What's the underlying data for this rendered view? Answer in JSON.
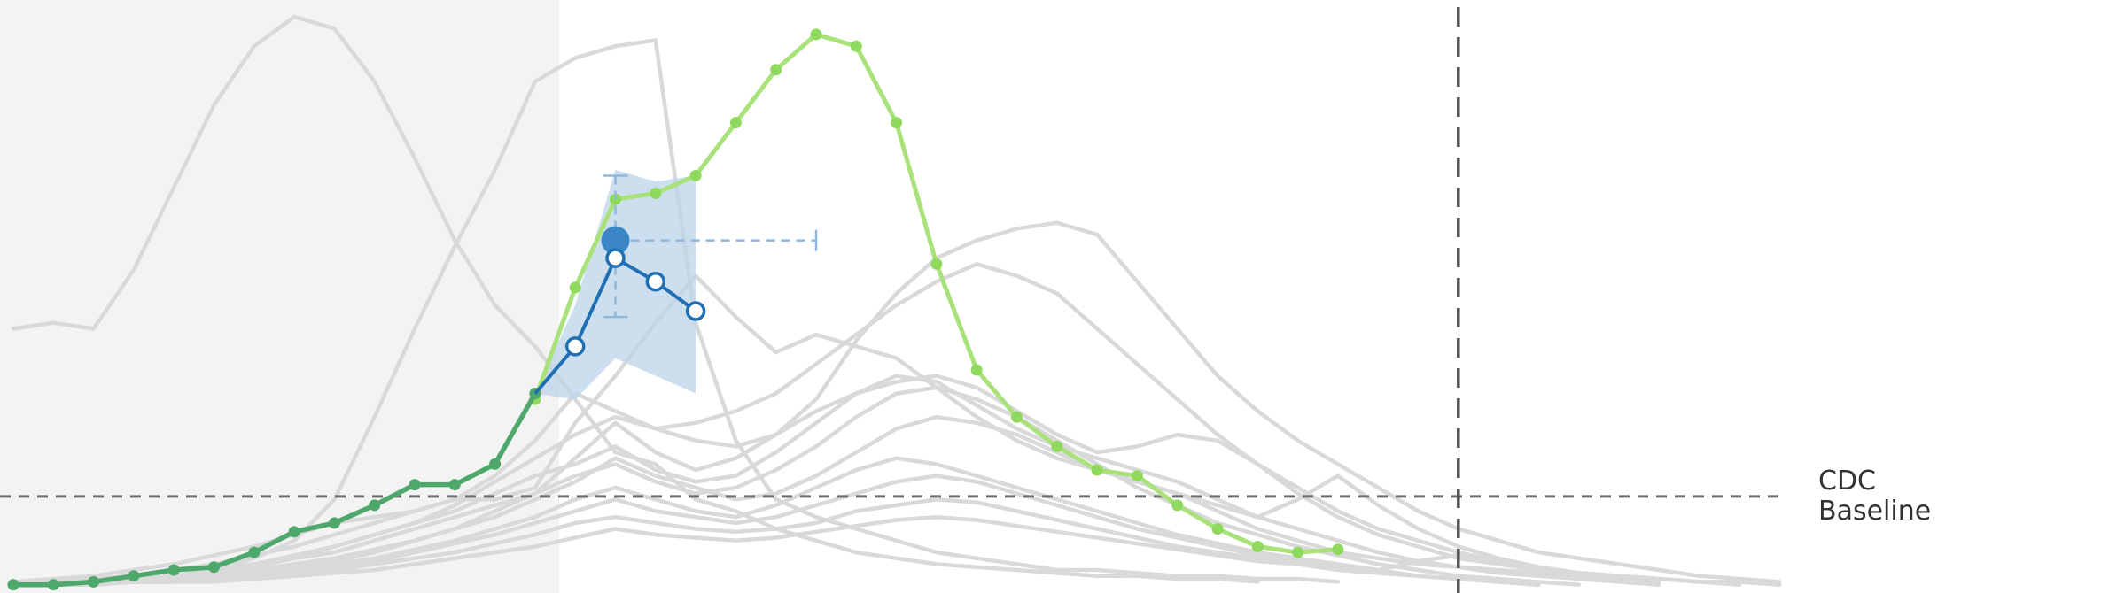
{
  "chart_data": {
    "type": "line",
    "title": "",
    "xlabel": "",
    "ylabel": "",
    "x_range": [
      0,
      50
    ],
    "y_range": [
      0,
      9.7
    ],
    "grid": false,
    "shaded_region_x": [
      0,
      13.6
    ],
    "current_week_marker_x": 36,
    "cdc_baseline": {
      "value": 1.55,
      "label_line1": "CDC",
      "label_line2": "Baseline"
    },
    "colors": {
      "history": "#d9d9d9",
      "shaded_region": "#f3f3f3",
      "actual": "#a9e27a",
      "actual_points": "#8fd95e",
      "observed": "#4ea86b",
      "forecast": "#1f6fb2",
      "forecast_band": "#bcd4ea",
      "marker_line": "#555555",
      "baseline_line": "#6e6e6e"
    },
    "history_series": [
      {
        "values": [
          4.4,
          4.5,
          4.4,
          5.4,
          6.8,
          8.2,
          9.2,
          9.7,
          9.5,
          8.6,
          7.3,
          5.9,
          4.8,
          4.1,
          3.2,
          2.3,
          2.1,
          1.5,
          1.3,
          1.0,
          0.8,
          0.6,
          0.5,
          0.4,
          0.35,
          0.3,
          0.25,
          0.2,
          0.2,
          0.15,
          0.15,
          0.1
        ]
      },
      {
        "values": [
          0.05,
          0.1,
          0.1,
          0.15,
          0.2,
          0.3,
          0.5,
          0.8,
          1.5,
          2.9,
          4.4,
          5.8,
          7.1,
          8.6,
          9.0,
          9.2,
          9.3,
          4.5,
          2.5,
          1.5,
          1.2,
          1.0,
          0.8,
          0.6,
          0.5,
          0.4,
          0.3,
          0.3,
          0.25,
          0.2,
          0.2,
          0.15,
          0.15,
          0.1
        ]
      },
      {
        "values": [
          0.1,
          0.15,
          0.2,
          0.3,
          0.4,
          0.55,
          0.7,
          0.9,
          1.1,
          1.2,
          1.3,
          1.5,
          1.5,
          1.7,
          2.8,
          3.6,
          4.5,
          5.3,
          4.6,
          4.0,
          4.3,
          4.1,
          3.9,
          3.4,
          2.9,
          2.5,
          2.2,
          2.0,
          1.8,
          1.6,
          1.3,
          1.0,
          0.8,
          0.6,
          0.5,
          0.4,
          0.35,
          0.3,
          0.25,
          0.2,
          0.2,
          0.15,
          0.1,
          0.1,
          0.05
        ]
      },
      {
        "values": [
          0.05,
          0.1,
          0.1,
          0.15,
          0.2,
          0.3,
          0.4,
          0.5,
          0.7,
          0.9,
          1.1,
          1.4,
          1.8,
          2.2,
          2.6,
          2.9,
          2.7,
          2.5,
          2.4,
          2.6,
          3.2,
          4.2,
          5.0,
          5.6,
          5.9,
          6.1,
          6.2,
          6.0,
          5.2,
          4.4,
          3.6,
          3.0,
          2.5,
          2.1,
          1.7,
          1.3,
          1.0,
          0.8,
          0.6,
          0.5,
          0.4,
          0.3,
          0.2,
          0.15,
          0.1
        ]
      },
      {
        "values": [
          0.05,
          0.1,
          0.15,
          0.2,
          0.3,
          0.4,
          0.55,
          0.7,
          0.9,
          1.1,
          1.3,
          1.5,
          1.9,
          2.5,
          3.3,
          3.0,
          2.7,
          2.8,
          3.0,
          3.3,
          3.8,
          4.3,
          4.8,
          5.2,
          5.5,
          5.3,
          5.0,
          4.4,
          3.8,
          3.2,
          2.6,
          2.1,
          1.7,
          1.3,
          1.0,
          0.8,
          0.6,
          0.45,
          0.35,
          0.25,
          0.2,
          0.15,
          0.1
        ]
      },
      {
        "values": [
          0.05,
          0.1,
          0.1,
          0.15,
          0.2,
          0.25,
          0.35,
          0.5,
          0.6,
          0.8,
          1.0,
          1.2,
          1.4,
          1.6,
          2.2,
          2.8,
          2.3,
          2.0,
          2.2,
          2.6,
          3.0,
          3.3,
          3.5,
          3.6,
          3.4,
          3.0,
          2.6,
          2.3,
          2.4,
          2.6,
          2.5,
          2.1,
          1.6,
          1.2,
          0.9,
          0.7,
          0.5,
          0.4,
          0.3,
          0.2,
          0.15,
          0.1
        ]
      },
      {
        "values": [
          0.05,
          0.1,
          0.1,
          0.15,
          0.2,
          0.3,
          0.4,
          0.55,
          0.7,
          0.9,
          1.1,
          1.3,
          1.6,
          1.9,
          2.1,
          2.4,
          2.0,
          1.8,
          1.9,
          2.3,
          2.8,
          3.3,
          3.6,
          3.5,
          3.1,
          2.7,
          2.4,
          2.2,
          2.0,
          1.8,
          1.5,
          1.2,
          1.5,
          1.9,
          1.4,
          1.0,
          0.7,
          0.5,
          0.35,
          0.25,
          0.2,
          0.1
        ]
      },
      {
        "values": [
          0.05,
          0.05,
          0.1,
          0.1,
          0.15,
          0.2,
          0.25,
          0.35,
          0.45,
          0.6,
          0.8,
          1.0,
          1.3,
          1.6,
          1.9,
          2.1,
          1.8,
          1.6,
          1.7,
          2.0,
          2.4,
          2.9,
          3.3,
          3.4,
          3.2,
          2.9,
          2.5,
          2.1,
          1.7,
          1.4,
          1.1,
          0.9,
          0.7,
          0.55,
          0.4,
          0.3,
          0.2,
          0.15,
          0.1,
          0.05
        ]
      },
      {
        "values": [
          0.05,
          0.05,
          0.1,
          0.1,
          0.15,
          0.2,
          0.3,
          0.4,
          0.5,
          0.65,
          0.8,
          1.0,
          1.2,
          1.5,
          1.8,
          2.2,
          1.9,
          1.7,
          1.5,
          1.6,
          1.9,
          2.3,
          2.7,
          2.9,
          2.8,
          2.6,
          2.3,
          2.0,
          1.8,
          1.6,
          1.4,
          1.2,
          1.0,
          0.8,
          0.6,
          0.45,
          0.35,
          0.25,
          0.2,
          0.15,
          0.1,
          0.05
        ]
      },
      {
        "values": [
          0.05,
          0.05,
          0.1,
          0.1,
          0.15,
          0.2,
          0.25,
          0.3,
          0.4,
          0.5,
          0.65,
          0.8,
          1.0,
          1.2,
          1.5,
          1.7,
          1.5,
          1.3,
          1.2,
          1.4,
          1.7,
          2.0,
          2.2,
          2.1,
          1.9,
          1.7,
          1.5,
          1.3,
          1.1,
          0.9,
          0.75,
          0.6,
          0.5,
          0.4,
          0.3,
          0.2,
          0.15,
          0.1,
          0.05
        ]
      },
      {
        "values": [
          0.05,
          0.05,
          0.1,
          0.1,
          0.1,
          0.15,
          0.2,
          0.3,
          0.35,
          0.45,
          0.6,
          0.75,
          0.9,
          1.1,
          1.3,
          1.5,
          1.3,
          1.2,
          1.1,
          1.2,
          1.4,
          1.6,
          1.8,
          1.9,
          1.8,
          1.6,
          1.4,
          1.2,
          1.0,
          0.85,
          0.7,
          0.55,
          0.45,
          0.35,
          0.25,
          0.2,
          0.15,
          0.1,
          0.05
        ]
      },
      {
        "values": [
          0.05,
          0.05,
          0.05,
          0.1,
          0.1,
          0.15,
          0.2,
          0.25,
          0.3,
          0.4,
          0.5,
          0.6,
          0.75,
          0.9,
          1.1,
          1.2,
          1.1,
          1.0,
          0.95,
          1.0,
          1.1,
          1.3,
          1.4,
          1.5,
          1.45,
          1.3,
          1.15,
          1.0,
          0.85,
          0.7,
          0.6,
          0.5,
          0.4,
          0.3,
          0.25,
          0.2,
          0.15,
          0.1,
          0.05
        ]
      },
      {
        "values": [
          0.05,
          0.05,
          0.05,
          0.1,
          0.1,
          0.1,
          0.15,
          0.2,
          0.25,
          0.3,
          0.4,
          0.5,
          0.6,
          0.7,
          0.85,
          1.0,
          0.9,
          0.85,
          0.8,
          0.85,
          0.95,
          1.05,
          1.15,
          1.2,
          1.15,
          1.05,
          0.95,
          0.85,
          0.75,
          0.65,
          0.55,
          0.45,
          0.4,
          0.35,
          0.3,
          0.45,
          0.55,
          0.4,
          0.3,
          0.25,
          0.2,
          0.15,
          0.1,
          0.05
        ]
      }
    ],
    "actual_series": {
      "x": [
        13,
        14,
        15,
        16,
        17,
        18,
        19,
        20,
        21,
        22,
        23,
        24,
        25,
        26,
        27,
        28,
        29,
        30,
        31,
        32,
        33
      ],
      "values": [
        3.2,
        5.1,
        6.6,
        6.7,
        7.0,
        7.9,
        8.8,
        9.4,
        9.2,
        7.9,
        5.5,
        3.7,
        2.9,
        2.4,
        2.0,
        1.9,
        1.4,
        1.0,
        0.7,
        0.6,
        0.65
      ]
    },
    "observed_series": {
      "x": [
        0,
        1,
        2,
        3,
        4,
        5,
        6,
        7,
        8,
        9,
        10,
        11,
        12,
        13
      ],
      "values": [
        0.05,
        0.05,
        0.1,
        0.2,
        0.3,
        0.35,
        0.6,
        0.95,
        1.1,
        1.4,
        1.75,
        1.75,
        2.1,
        3.3
      ]
    },
    "forecast": {
      "x": [
        13,
        14,
        15,
        16,
        17
      ],
      "values": [
        3.3,
        4.1,
        5.6,
        5.2,
        4.7
      ],
      "band_upper": [
        3.3,
        4.8,
        7.1,
        6.9,
        7.0
      ],
      "band_lower": [
        3.3,
        3.2,
        3.9,
        3.6,
        3.3
      ]
    },
    "peak_estimate": {
      "x": 15,
      "y": 5.9,
      "x_range": [
        15,
        20
      ],
      "y_range": [
        4.6,
        7.0
      ]
    }
  }
}
